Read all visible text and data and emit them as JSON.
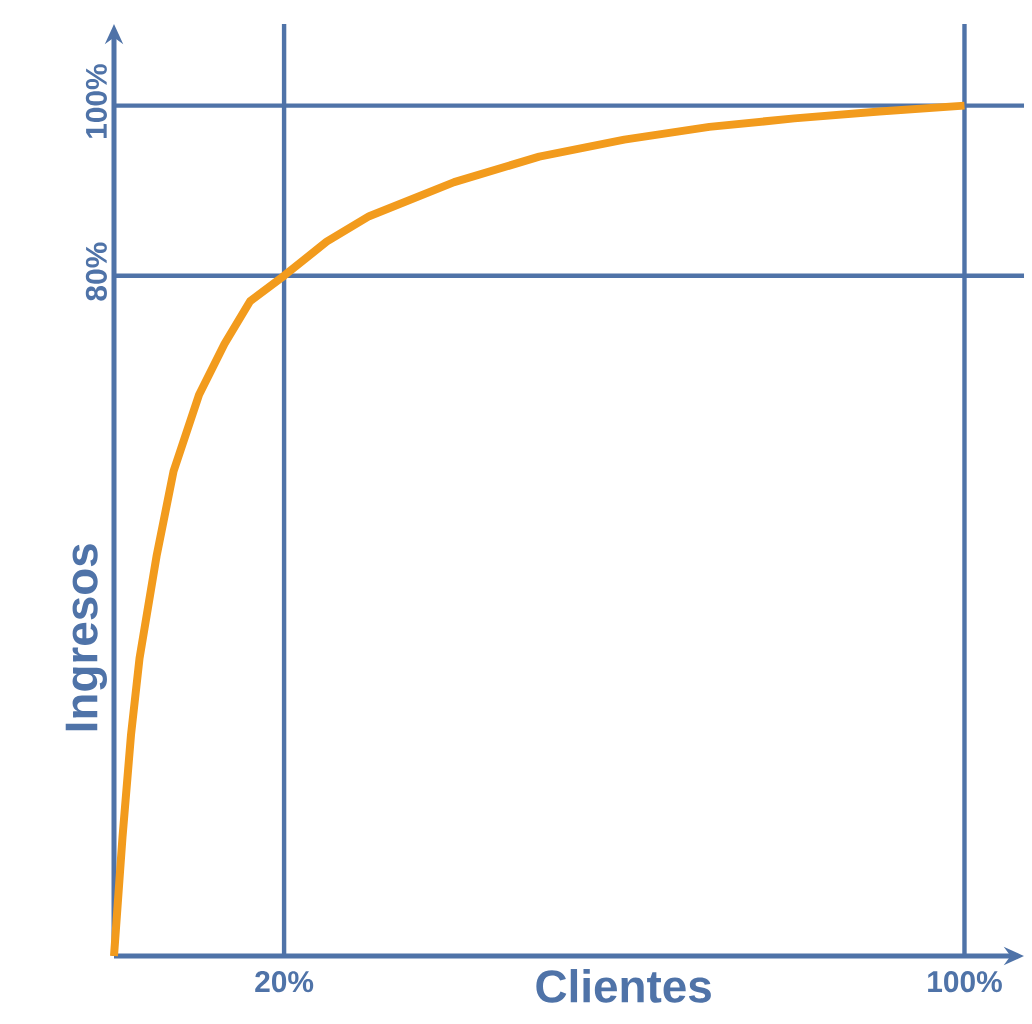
{
  "chart_data": {
    "type": "line",
    "xlabel": "Clientes",
    "ylabel": "Ingresos",
    "x": [
      0,
      1,
      2,
      3,
      5,
      7,
      10,
      13,
      16,
      20,
      25,
      30,
      40,
      50,
      60,
      70,
      80,
      90,
      100
    ],
    "series": [
      {
        "color": "#f29b1d",
        "values": [
          0,
          14,
          26,
          35,
          47,
          57,
          66,
          72,
          77,
          80,
          84,
          87,
          91,
          94,
          96,
          97.5,
          98.5,
          99.3,
          100
        ]
      }
    ],
    "xlim": [
      0,
      107
    ],
    "ylim": [
      0,
      109.6
    ],
    "xticks": [
      {
        "value": 20,
        "label": "20%"
      },
      {
        "value": 100,
        "label": "100%"
      }
    ],
    "yticks": [
      {
        "value": 80,
        "label": "80%"
      },
      {
        "value": 100,
        "label": "100%"
      }
    ],
    "ref_lines": [
      {
        "axis": "x",
        "value": 20,
        "color": "#4f73a8"
      },
      {
        "axis": "x",
        "value": 100,
        "color": "#4f73a8"
      },
      {
        "axis": "y",
        "value": 80,
        "color": "#4f73a8"
      },
      {
        "axis": "y",
        "value": 100,
        "color": "#4f73a8"
      }
    ]
  }
}
